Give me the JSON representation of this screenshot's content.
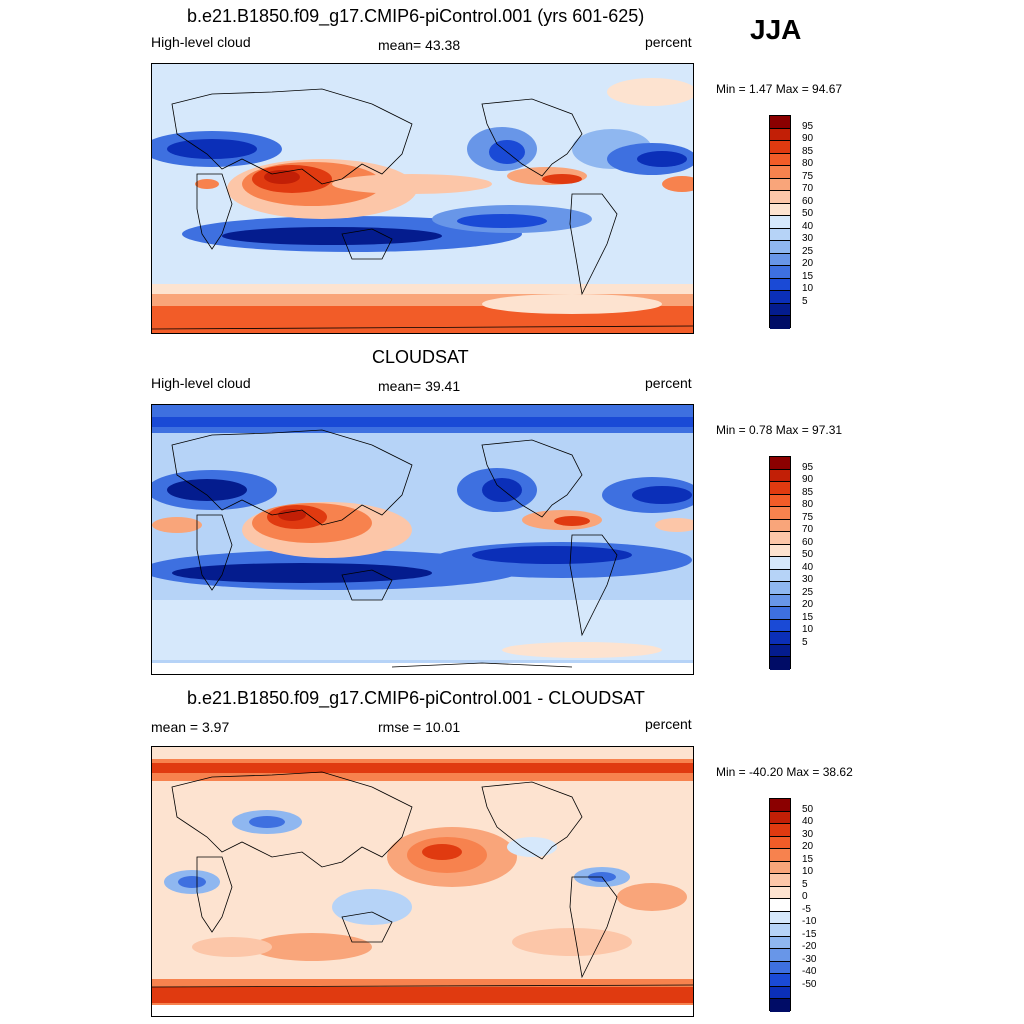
{
  "season": "JJA",
  "panels": [
    {
      "title": "b.e21.B1850.f09_g17.CMIP6-piControl.001 (yrs 601-625)",
      "left_label": "High-level cloud",
      "center_label": "mean=  43.38",
      "right_label": "percent",
      "minmax": "Min =   1.47 Max =  94.67"
    },
    {
      "title": "CLOUDSAT",
      "left_label": "High-level cloud",
      "center_label": "mean=  39.41",
      "right_label": "percent",
      "minmax": "Min =   0.78 Max =  97.31"
    },
    {
      "title": "b.e21.B1850.f09_g17.CMIP6-piControl.001 - CLOUDSAT",
      "left_label": "mean =   3.97",
      "center_label": "rmse =  10.01",
      "right_label": "percent",
      "minmax": "Min = -40.20 Max =  38.62"
    }
  ],
  "colorbars": {
    "abs": {
      "colors": [
        "#8b0000",
        "#c21f06",
        "#e03a10",
        "#f25c28",
        "#f7824e",
        "#f9a57a",
        "#fcc6a8",
        "#fde3d0",
        "#d6e8fb",
        "#b6d3f7",
        "#8fb7f0",
        "#6896e8",
        "#3e70e0",
        "#1a4ad6",
        "#0b2fb8",
        "#041c8e",
        "#000c66"
      ],
      "ticks": [
        "95",
        "90",
        "85",
        "80",
        "75",
        "70",
        "60",
        "50",
        "40",
        "30",
        "25",
        "20",
        "15",
        "10",
        "5"
      ]
    },
    "diff": {
      "colors": [
        "#8b0000",
        "#c21f06",
        "#e03a10",
        "#f25c28",
        "#f7824e",
        "#f9a57a",
        "#fcc6a8",
        "#fde3d0",
        "#ffffff",
        "#d6e8fb",
        "#b6d3f7",
        "#8fb7f0",
        "#6896e8",
        "#3e70e0",
        "#1a4ad6",
        "#0b2fb8",
        "#000c66"
      ],
      "ticks": [
        "50",
        "40",
        "30",
        "20",
        "15",
        "10",
        "5",
        "0",
        "-5",
        "-10",
        "-15",
        "-20",
        "-30",
        "-40",
        "-50"
      ]
    }
  }
}
